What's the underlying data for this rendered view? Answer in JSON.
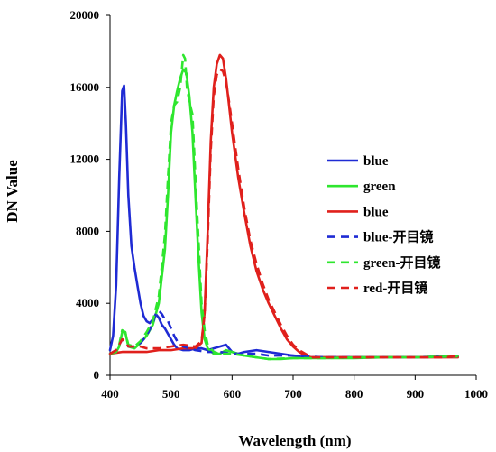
{
  "chart_data": {
    "type": "line",
    "xlabel": "Wavelength (nm)",
    "ylabel": "DN Value",
    "xlim": [
      400,
      1000
    ],
    "ylim": [
      0,
      20000
    ],
    "xticks": [
      "400",
      "500",
      "600",
      "700",
      "800",
      "900",
      "1000"
    ],
    "yticks": [
      "0",
      "4000",
      "8000",
      "12000",
      "16000",
      "20000"
    ],
    "grid": false,
    "legend_position": "right",
    "series": [
      {
        "name": "blue",
        "color": "#1f2bd4",
        "dash": "solid",
        "x": [
          400,
          405,
          410,
          415,
          420,
          423,
          426,
          430,
          435,
          440,
          445,
          450,
          455,
          460,
          465,
          470,
          475,
          480,
          485,
          490,
          495,
          500,
          505,
          510,
          520,
          530,
          540,
          550,
          560,
          570,
          580,
          590,
          600,
          610,
          620,
          640,
          660,
          680,
          700,
          720,
          750,
          800,
          850,
          900,
          950,
          970
        ],
        "y": [
          1400,
          2200,
          5000,
          11000,
          15800,
          16100,
          14000,
          10000,
          7200,
          6000,
          5000,
          4000,
          3300,
          3000,
          2900,
          3100,
          3400,
          3200,
          2800,
          2600,
          2300,
          2000,
          1700,
          1500,
          1400,
          1400,
          1500,
          1500,
          1400,
          1500,
          1600,
          1700,
          1300,
          1200,
          1300,
          1400,
          1300,
          1200,
          1100,
          1000,
          1000,
          1000,
          1000,
          1000,
          1050,
          1050
        ]
      },
      {
        "name": "green",
        "color": "#2ee62e",
        "dash": "solid",
        "x": [
          400,
          410,
          415,
          420,
          425,
          430,
          440,
          450,
          460,
          470,
          480,
          490,
          495,
          500,
          505,
          510,
          515,
          520,
          525,
          530,
          535,
          540,
          545,
          550,
          555,
          560,
          570,
          580,
          590,
          600,
          620,
          640,
          660,
          680,
          700,
          750,
          800,
          850,
          900,
          950,
          970
        ],
        "y": [
          1200,
          1300,
          1600,
          2400,
          2400,
          1600,
          1500,
          1800,
          2200,
          2800,
          4000,
          7000,
          10000,
          13500,
          15000,
          15800,
          16500,
          17000,
          16800,
          15500,
          13500,
          10000,
          6500,
          3500,
          2000,
          1500,
          1200,
          1200,
          1400,
          1300,
          1100,
          1000,
          900,
          900,
          950,
          950,
          950,
          1000,
          1000,
          1050,
          1050
        ]
      },
      {
        "name": "blue",
        "color": "#e0201c",
        "dash": "solid",
        "x": [
          400,
          420,
          440,
          460,
          480,
          500,
          520,
          540,
          550,
          555,
          560,
          565,
          570,
          575,
          580,
          585,
          590,
          595,
          600,
          610,
          620,
          630,
          640,
          650,
          660,
          670,
          680,
          690,
          700,
          710,
          720,
          730,
          750,
          800,
          850,
          900,
          950,
          970
        ],
        "y": [
          1200,
          1300,
          1300,
          1300,
          1400,
          1400,
          1500,
          1500,
          1800,
          3500,
          8000,
          13000,
          16000,
          17300,
          17800,
          17600,
          16500,
          15000,
          13500,
          11000,
          9000,
          7200,
          5800,
          4800,
          4000,
          3300,
          2600,
          2000,
          1600,
          1300,
          1100,
          1000,
          1000,
          1000,
          1000,
          1000,
          1000,
          1000
        ]
      },
      {
        "name": "blue-开目镜",
        "color": "#1f2bd4",
        "dash": "dashed",
        "x": [
          400,
          410,
          415,
          420,
          425,
          430,
          440,
          450,
          460,
          470,
          475,
          480,
          485,
          490,
          495,
          500,
          505,
          510,
          520,
          530,
          540,
          560,
          580,
          600,
          620,
          640,
          660,
          700,
          750,
          800,
          900,
          970
        ],
        "y": [
          1200,
          1400,
          1700,
          2000,
          1900,
          1600,
          1600,
          1800,
          2200,
          2900,
          3400,
          3600,
          3400,
          3100,
          3000,
          2600,
          2200,
          1900,
          1600,
          1500,
          1400,
          1300,
          1300,
          1200,
          1200,
          1200,
          1100,
          1100,
          1000,
          1000,
          1000,
          1050
        ]
      },
      {
        "name": "green-开目镜",
        "color": "#2ee62e",
        "dash": "dashed",
        "x": [
          400,
          410,
          415,
          420,
          425,
          430,
          440,
          450,
          460,
          470,
          480,
          490,
          495,
          500,
          505,
          510,
          515,
          520,
          523,
          526,
          530,
          535,
          540,
          545,
          550,
          555,
          560,
          570,
          580,
          600,
          620,
          640,
          660,
          700,
          750,
          800,
          900,
          970
        ],
        "y": [
          1200,
          1300,
          1700,
          2500,
          2400,
          1700,
          1600,
          1900,
          2400,
          3000,
          4400,
          7800,
          11000,
          14000,
          15000,
          15200,
          16000,
          17800,
          17600,
          16000,
          15200,
          14500,
          11000,
          7500,
          4000,
          2500,
          1700,
          1300,
          1200,
          1200,
          1100,
          1000,
          900,
          950,
          950,
          1000,
          1000,
          1050
        ]
      },
      {
        "name": "red-开目镜",
        "color": "#e0201c",
        "dash": "dashed",
        "x": [
          400,
          410,
          415,
          420,
          425,
          430,
          440,
          450,
          460,
          480,
          500,
          520,
          540,
          550,
          555,
          560,
          565,
          570,
          575,
          580,
          585,
          590,
          595,
          600,
          610,
          620,
          630,
          640,
          650,
          660,
          670,
          680,
          690,
          700,
          710,
          720,
          730,
          750,
          800,
          850,
          900,
          950,
          970
        ],
        "y": [
          1200,
          1400,
          1700,
          2000,
          1900,
          1600,
          1600,
          1600,
          1500,
          1500,
          1600,
          1700,
          1600,
          1900,
          3400,
          7500,
          12500,
          15500,
          16700,
          17000,
          16900,
          16300,
          15200,
          14000,
          11500,
          9300,
          7500,
          6200,
          5100,
          4200,
          3500,
          2800,
          2200,
          1700,
          1400,
          1200,
          1000,
          1000,
          1000,
          1000,
          1000,
          1000,
          1100
        ]
      }
    ]
  }
}
